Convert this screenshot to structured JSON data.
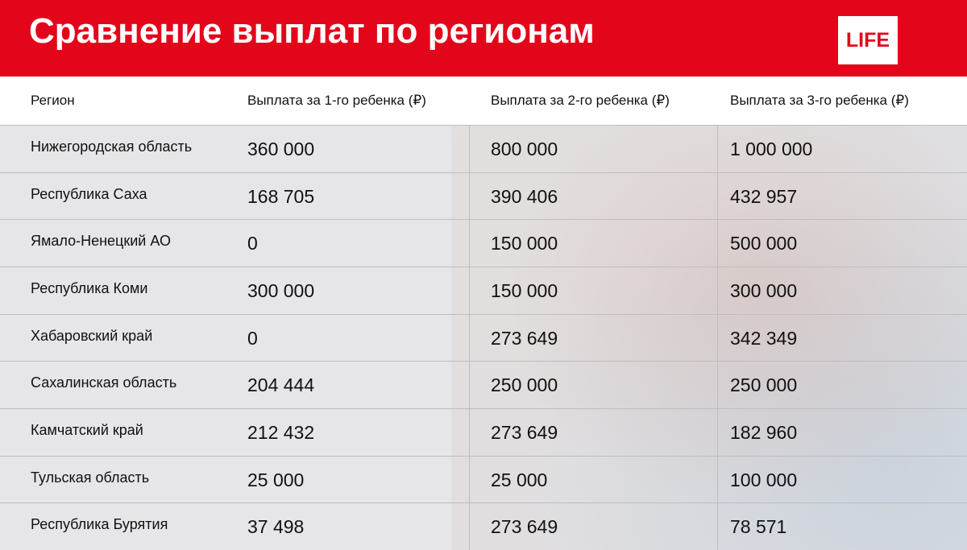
{
  "header": {
    "title": "Сравнение выплат по регионам",
    "logo": "LIFE"
  },
  "table": {
    "columns": [
      "Регион",
      "Выплата за 1-го ребенка (₽)",
      "Выплата за 2-го ребенка (₽)",
      "Выплата за 3-го ребенка (₽)"
    ],
    "rows": [
      [
        "Нижегородская область",
        "360 000",
        "800 000",
        "1 000 000"
      ],
      [
        "Республика Саха",
        "168 705",
        "390 406",
        "432 957"
      ],
      [
        "Ямало-Ненецкий АО",
        "0",
        "150 000",
        "500 000"
      ],
      [
        "Республика Коми",
        "300 000",
        "150 000",
        "300 000"
      ],
      [
        "Хабаровский край",
        "0",
        "273 649",
        "342 349"
      ],
      [
        "Сахалинская область",
        "204 444",
        "250 000",
        "250 000"
      ],
      [
        "Камчатский край",
        "212 432",
        "273 649",
        "182 960"
      ],
      [
        "Тульская область",
        "25 000",
        "25 000",
        "100 000"
      ],
      [
        "Республика Бурятия",
        "37 498",
        "273 649",
        "78 571"
      ]
    ]
  }
}
